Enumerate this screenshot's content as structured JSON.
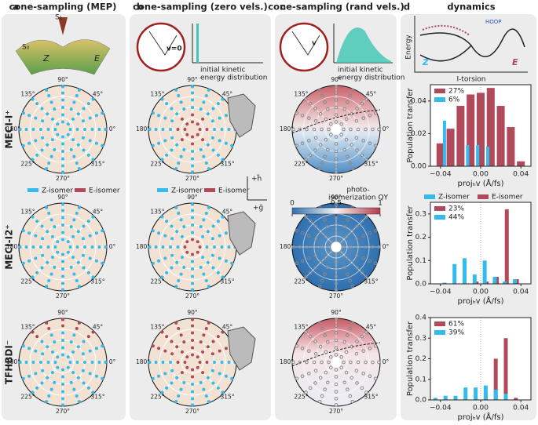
{
  "panels": [
    {
      "letter": "a",
      "title": "cone-sampling (MEP)"
    },
    {
      "letter": "b",
      "title": "cone-sampling (zero vels.)"
    },
    {
      "letter": "c",
      "title": "cone-sampling (rand vels.)"
    },
    {
      "letter": "d",
      "title": "dynamics"
    }
  ],
  "rows": [
    "MECI-I⁺",
    "MECI-I2⁺",
    "TFHBDI⁻"
  ],
  "polar": {
    "angle_labels": [
      "90°",
      "45°",
      "0°",
      "315°",
      "270°",
      "225°",
      "180°",
      "135°"
    ]
  },
  "legend": {
    "z": "Z-isomer",
    "e": "E-isomer"
  },
  "surface_inset": {
    "s1": "S₁",
    "s0": "S₀",
    "z": "Z",
    "e": "E"
  },
  "zero_inset": {
    "v": "v=0",
    "caption": [
      "initial kinetic",
      "energy distribution"
    ]
  },
  "rand_inset": {
    "v": "v",
    "caption": [
      "initial kinetic",
      "energy distribution"
    ]
  },
  "axes_hint": {
    "h": "+h̃",
    "g": "+g̃"
  },
  "colorbar": {
    "title": [
      "photo-",
      "isomerization QY"
    ],
    "ticks": [
      0,
      0.5,
      1
    ],
    "lim": [
      0,
      1
    ]
  },
  "energy_diagram": {
    "ylabel": "Energy",
    "xlabel": "I-torsion",
    "hoop": "HOOP",
    "z": "Z",
    "e": "E"
  },
  "chart_data": [
    {
      "type": "bar",
      "xlabel": "projₕv (Å/fs)",
      "ylabel": "Population transfer",
      "xlim": [
        -0.05,
        0.05
      ],
      "xticks": [
        {
          "value": -0.04,
          "label": "−0.04"
        },
        {
          "value": 0,
          "label": "0.00"
        },
        {
          "value": 0.04,
          "label": "0.04"
        }
      ],
      "ylim": [
        0,
        0.05
      ],
      "yticks": [
        {
          "value": 0,
          "label": "0.00"
        },
        {
          "value": 0.02,
          "label": "0.02"
        },
        {
          "value": 0.04,
          "label": "0.04"
        }
      ],
      "series": [
        {
          "name": "27%",
          "color": "#b0495a",
          "x": [
            -0.04,
            -0.03,
            -0.02,
            -0.01,
            0,
            0.01,
            0.02,
            0.03,
            0.04
          ],
          "values": [
            0.014,
            0.023,
            0.037,
            0.044,
            0.045,
            0.048,
            0.037,
            0.024,
            0.003
          ]
        },
        {
          "name": "6%",
          "color": "#33bbee",
          "x": [
            -0.036,
            -0.013,
            -0.003,
            0.007
          ],
          "values": [
            0.028,
            0.013,
            0.013,
            0.012
          ]
        }
      ]
    },
    {
      "type": "bar",
      "xlabel": "projₕv (Å/fs)",
      "ylabel": "Population transfer",
      "legend_titles": [
        "Z-isomer",
        "E-isomer"
      ],
      "xlim": [
        -0.05,
        0.05
      ],
      "xticks": [
        {
          "value": -0.04,
          "label": "−0.04"
        },
        {
          "value": 0,
          "label": "0.00"
        },
        {
          "value": 0.04,
          "label": "0.04"
        }
      ],
      "ylim": [
        0,
        0.35
      ],
      "yticks": [
        {
          "value": 0,
          "label": "0.0"
        },
        0.1,
        0.2,
        0.3
      ],
      "series": [
        {
          "name": "23%",
          "color": "#b0495a",
          "x": [
            -0.004,
            0.006,
            0.016,
            0.026,
            0.036
          ],
          "values": [
            0.01,
            0.01,
            0.03,
            0.32,
            0.02
          ]
        },
        {
          "name": "44%",
          "color": "#33bbee",
          "x": [
            -0.036,
            -0.026,
            -0.016,
            -0.006,
            0.004,
            0.014,
            0.024,
            0.034
          ],
          "values": [
            0.005,
            0.085,
            0.11,
            0.04,
            0.1,
            0.03,
            0.01,
            0.02
          ]
        }
      ]
    },
    {
      "type": "bar",
      "xlabel": "projₕv (Å/fs)",
      "ylabel": "Population transfer",
      "xlim": [
        -0.05,
        0.05
      ],
      "xticks": [
        {
          "value": -0.04,
          "label": "−0.04"
        },
        {
          "value": 0,
          "label": "0.00"
        },
        {
          "value": 0.04,
          "label": "0.04"
        }
      ],
      "ylim": [
        0,
        0.4
      ],
      "yticks": [
        {
          "value": 0,
          "label": "0.0"
        },
        0.1,
        0.2,
        0.3,
        0.4
      ],
      "series": [
        {
          "name": "61%",
          "color": "#b0495a",
          "x": [
            0.005,
            0.015,
            0.025,
            0.035
          ],
          "values": [
            0.03,
            0.2,
            0.3,
            0.01
          ]
        },
        {
          "name": "39%",
          "color": "#33bbee",
          "x": [
            -0.045,
            -0.035,
            -0.025,
            -0.015,
            -0.005,
            0.005,
            0.015,
            0.025
          ],
          "values": [
            0.01,
            0.02,
            0.02,
            0.06,
            0.06,
            0.07,
            0.05,
            0.03
          ]
        }
      ]
    }
  ]
}
